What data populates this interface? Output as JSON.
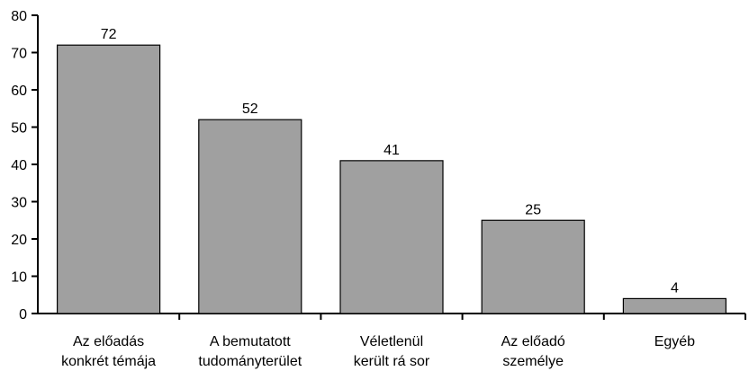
{
  "chart_data": {
    "type": "bar",
    "title": "",
    "xlabel": "",
    "ylabel": "",
    "categories": [
      [
        "Az előadás",
        "konkrét témája"
      ],
      [
        "A bemutatott",
        "tudományterület"
      ],
      [
        "Véletlenül",
        "került rá sor"
      ],
      [
        "Az előadó",
        "személye"
      ],
      [
        "Egyéb"
      ]
    ],
    "values": [
      72,
      52,
      41,
      25,
      4
    ],
    "value_labels": [
      "72",
      "52",
      "41",
      "25",
      "4"
    ],
    "ylim": [
      0,
      80
    ],
    "yticks": [
      0,
      10,
      20,
      30,
      40,
      50,
      60,
      70,
      80
    ],
    "ytick_labels": [
      "0",
      "10",
      "20",
      "30",
      "40",
      "50",
      "60",
      "70",
      "80"
    ],
    "grid": false,
    "bar_color": "#a0a0a0",
    "bar_edge_color": "#000000"
  }
}
